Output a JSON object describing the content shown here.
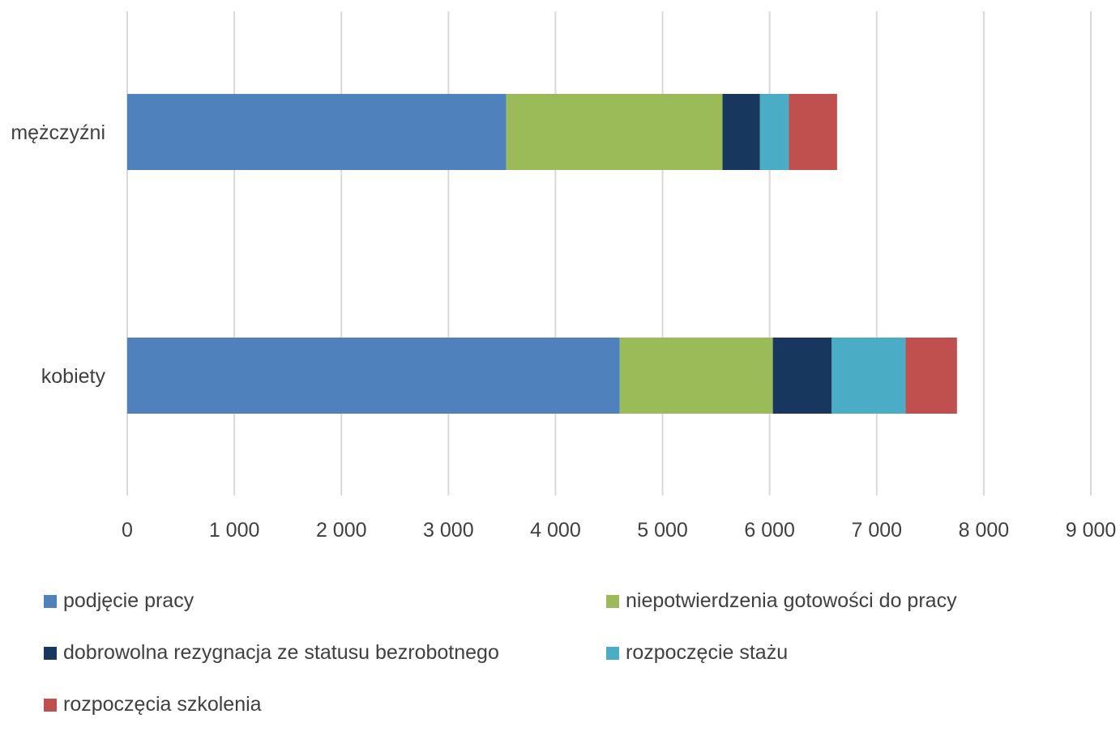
{
  "chart_data": {
    "type": "bar",
    "orientation": "horizontal",
    "stacked": true,
    "categories": [
      "mężczyźni",
      "kobiety"
    ],
    "series": [
      {
        "name": "podjęcie pracy",
        "color": "#4F81BD",
        "values": [
          3540,
          4600
        ]
      },
      {
        "name": "niepotwierdzenia gotowości do pracy",
        "color": "#9BBB59",
        "values": [
          2020,
          1430
        ]
      },
      {
        "name": "dobrowolna rezygnacja ze statusu bezrobotnego",
        "color": "#17375E",
        "values": [
          350,
          550
        ]
      },
      {
        "name": "rozpoczęcie stażu",
        "color": "#4BACC6",
        "values": [
          270,
          690
        ]
      },
      {
        "name": "rozpoczęcia szkolenia",
        "color": "#C0504D",
        "values": [
          450,
          480
        ]
      }
    ],
    "xlim": [
      0,
      9000
    ],
    "x_ticks": [
      0,
      1000,
      2000,
      3000,
      4000,
      5000,
      6000,
      7000,
      8000,
      9000
    ],
    "x_tick_labels": [
      "0",
      "1 000",
      "2 000",
      "3 000",
      "4 000",
      "5 000",
      "6 000",
      "7 000",
      "8 000",
      "9 000"
    ],
    "grid": true,
    "legend_position": "bottom",
    "title": "",
    "xlabel": "",
    "ylabel": ""
  }
}
